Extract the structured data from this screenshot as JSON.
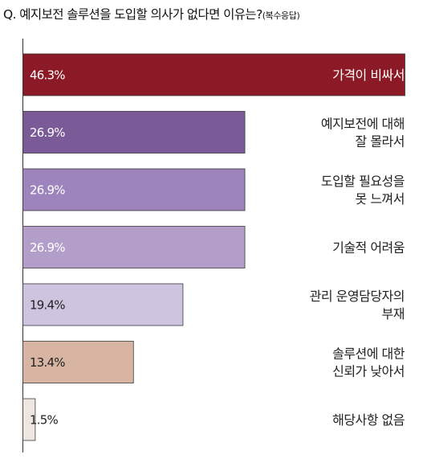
{
  "title": "Q. 예지보전 솔루션을 도입할 의사가 없다면 이유는?",
  "title_note": "(복수응답)",
  "chart_data": {
    "type": "bar",
    "orientation": "horizontal",
    "title": "Q. 예지보전 솔루션을 도입할 의사가 없다면 이유는?(복수응답)",
    "categories": [
      [
        "가격이 비싸서"
      ],
      [
        "예지보전에 대해",
        "잘 몰라서"
      ],
      [
        "도입할 필요성을",
        "못 느껴서"
      ],
      [
        "기술적 어려움"
      ],
      [
        "관리 운영담당자의",
        "부재"
      ],
      [
        "솔루션에 대한",
        "신뢰가 낮아서"
      ],
      [
        "해당사항 없음"
      ]
    ],
    "values": [
      46.3,
      26.9,
      26.9,
      26.9,
      19.4,
      13.4,
      1.5
    ],
    "value_labels": [
      "46.3%",
      "26.9%",
      "26.9%",
      "26.9%",
      "19.4%",
      "13.4%",
      "1.5%"
    ],
    "colors": [
      "#8b1a26",
      "#7a5b98",
      "#9d84bc",
      "#b29ec9",
      "#cec4df",
      "#d8b5a2",
      "#f0e6e1"
    ],
    "value_label_colors": [
      "#ffffff",
      "#ffffff",
      "#ffffff",
      "#ffffff",
      "#222222",
      "#222222",
      "#222222"
    ],
    "xlim": [
      0,
      46.3
    ],
    "grid": false,
    "legend": "none"
  }
}
